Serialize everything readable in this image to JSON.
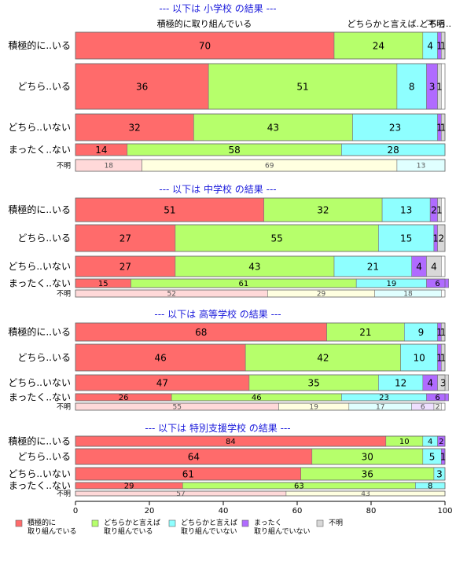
{
  "chart_data": {
    "type": "bar",
    "orientation": "horizontal-stacked-proportional",
    "categories_legend": [
      "積極的に\n取り組んでいる",
      "どちらかと言えば\n取り組んでいる",
      "どちらかと言えば\n取り組んでいない",
      "まったく\n取り組んでいない",
      "不明"
    ],
    "colors": [
      "#ff6b6b",
      "#b6ff6b",
      "#8effff",
      "#b06bff",
      "#d8d8d8"
    ],
    "unknown_row_colors": [
      "#ffd9d9",
      "#ffffe0",
      "#e0ffff",
      "#eedfff",
      "#eeeeee"
    ],
    "top_labels": [
      "積極的に取り組んでいる",
      "どちらかと言えば..",
      "どちら..",
      "不明"
    ],
    "x_ticks": [
      "0",
      "20",
      "40",
      "60",
      "80",
      "100"
    ],
    "xlim": [
      0,
      100
    ],
    "groups": [
      {
        "title": "--- 以下は 小学校 の結果 ---",
        "rows": [
          {
            "label": "積極的に..いる",
            "values": [
              70,
              24,
              4,
              1,
              1
            ]
          },
          {
            "label": "どちら..いる",
            "values": [
              36,
              51,
              8,
              3,
              1
            ]
          },
          {
            "label": "どちら..いない",
            "values": [
              32,
              43,
              23,
              1,
              1
            ]
          },
          {
            "label": "まったく..ない",
            "values": [
              14,
              58,
              28,
              0,
              0
            ]
          },
          {
            "label": "不明",
            "values": [
              18,
              69,
              13,
              0,
              0
            ]
          }
        ]
      },
      {
        "title": "--- 以下は 中学校 の結果 ---",
        "rows": [
          {
            "label": "積極的に..いる",
            "values": [
              51,
              32,
              13,
              2,
              1
            ]
          },
          {
            "label": "どちら..いる",
            "values": [
              27,
              55,
              15,
              1,
              2
            ]
          },
          {
            "label": "どちら..いない",
            "values": [
              27,
              43,
              21,
              4,
              4
            ]
          },
          {
            "label": "まったく..ない",
            "values": [
              15,
              61,
              19,
              6,
              0
            ]
          },
          {
            "label": "不明",
            "values": [
              52,
              29,
              18,
              0,
              0
            ]
          }
        ]
      },
      {
        "title": "--- 以下は 高等学校 の結果 ---",
        "rows": [
          {
            "label": "積極的に..いる",
            "values": [
              68,
              21,
              9,
              1,
              1
            ]
          },
          {
            "label": "どちら..いる",
            "values": [
              46,
              42,
              10,
              1,
              1
            ]
          },
          {
            "label": "どちら..いない",
            "values": [
              47,
              35,
              12,
              4,
              3
            ]
          },
          {
            "label": "まったく..ない",
            "values": [
              26,
              46,
              23,
              6,
              0
            ]
          },
          {
            "label": "不明",
            "values": [
              55,
              19,
              17,
              6,
              2
            ]
          }
        ]
      },
      {
        "title": "--- 以下は 特別支援学校 の結果 ---",
        "rows": [
          {
            "label": "積極的に..いる",
            "values": [
              84,
              10,
              4,
              2,
              0
            ]
          },
          {
            "label": "どちら..いる",
            "values": [
              64,
              30,
              5,
              1,
              0
            ]
          },
          {
            "label": "どちら..いない",
            "values": [
              61,
              36,
              3,
              0,
              0
            ]
          },
          {
            "label": "まったく..ない",
            "values": [
              29,
              63,
              8,
              0,
              0
            ]
          },
          {
            "label": "不明",
            "values": [
              57,
              43,
              0,
              0,
              0
            ]
          }
        ]
      }
    ]
  }
}
